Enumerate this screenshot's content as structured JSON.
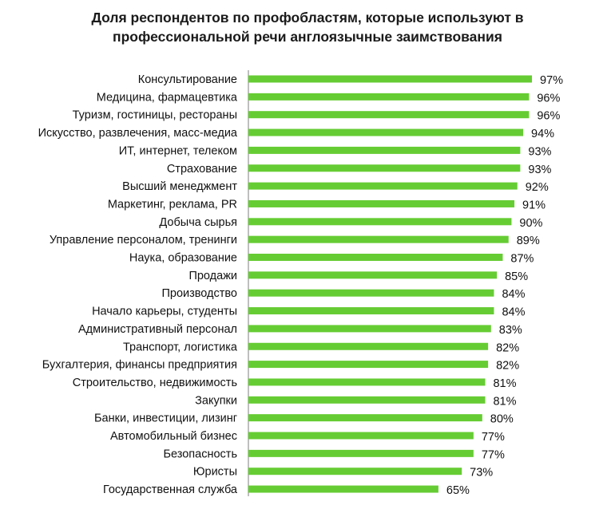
{
  "title_lines": [
    "Доля респондентов по профобластям, которые используют в",
    "профессиональной речи англоязычные заимствования"
  ],
  "colors": {
    "bar": "#66cc33",
    "axis": "#7f7f7f",
    "text": "#111111"
  },
  "chart_data": {
    "type": "bar",
    "orientation": "horizontal",
    "title": "Доля респондентов по профобластям, которые используют в профессиональной речи англоязычные заимствования",
    "unit": "%",
    "xlim": [
      0,
      100
    ],
    "grid": false,
    "legend": "none",
    "categories": [
      "Консультирование",
      "Медицина, фармацевтика",
      "Туризм, гостиницы, рестораны",
      "Искусство, развлечения, масс-медиа",
      "ИТ, интернет,  телеком",
      "Страхование",
      "Высший менеджмент",
      "Маркетинг, реклама, PR",
      "Добыча сырья",
      "Управление персоналом, тренинги",
      "Наука, образование",
      "Продажи",
      "Производство",
      "Начало карьеры, студенты",
      "Административный персонал",
      "Транспорт, логистика",
      "Бухгалтерия, финансы предприятия",
      "Строительство, недвижимость",
      "Закупки",
      "Банки, инвестиции,  лизинг",
      "Автомобильный бизнес",
      "Безопасность",
      "Юристы",
      "Государственная служба"
    ],
    "values": [
      97,
      96,
      96,
      94,
      93,
      93,
      92,
      91,
      90,
      89,
      87,
      85,
      84,
      84,
      83,
      82,
      82,
      81,
      81,
      80,
      77,
      77,
      73,
      65
    ],
    "data_labels": [
      "97%",
      "96%",
      "96%",
      "94%",
      "93%",
      "93%",
      "92%",
      "91%",
      "90%",
      "89%",
      "87%",
      "85%",
      "84%",
      "84%",
      "83%",
      "82%",
      "82%",
      "81%",
      "81%",
      "80%",
      "77%",
      "77%",
      "73%",
      "65%"
    ]
  }
}
